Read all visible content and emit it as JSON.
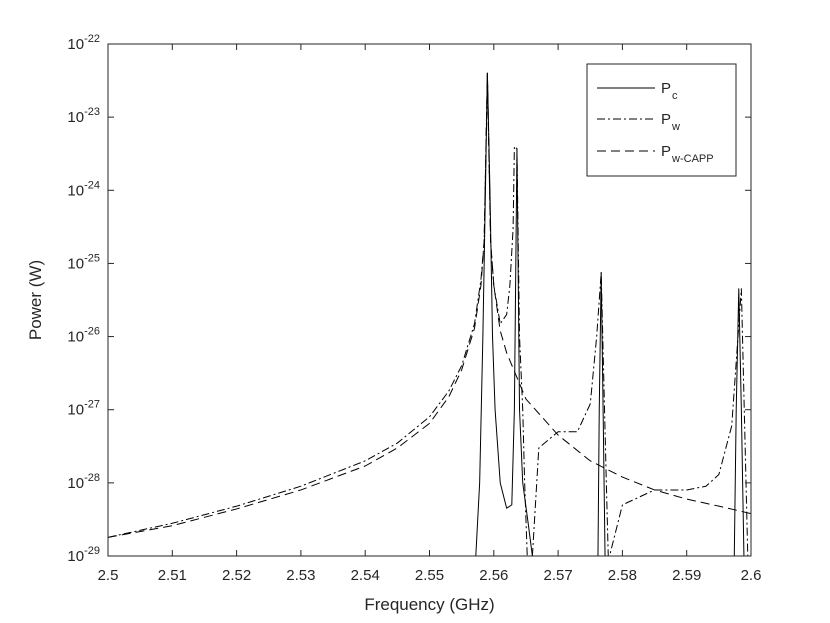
{
  "chart_data": {
    "type": "line",
    "title": "",
    "xlabel": "Frequency (GHz)",
    "ylabel": "Power (W)",
    "xlim": [
      2.5,
      2.6
    ],
    "ylim": [
      1e-29,
      1e-22
    ],
    "yscale": "log",
    "grid": false,
    "legend_position": "top-right",
    "x_ticks": [
      "2.5",
      "2.51",
      "2.52",
      "2.53",
      "2.54",
      "2.55",
      "2.56",
      "2.57",
      "2.58",
      "2.59",
      "2.6"
    ],
    "y_ticks": [
      {
        "base": "10",
        "exp": "-22"
      },
      {
        "base": "10",
        "exp": "-23"
      },
      {
        "base": "10",
        "exp": "-24"
      },
      {
        "base": "10",
        "exp": "-25"
      },
      {
        "base": "10",
        "exp": "-26"
      },
      {
        "base": "10",
        "exp": "-27"
      },
      {
        "base": "10",
        "exp": "-28"
      },
      {
        "base": "10",
        "exp": "-29"
      }
    ],
    "legend": [
      {
        "main": "P",
        "sub": "c"
      },
      {
        "main": "P",
        "sub": "w"
      },
      {
        "main": "P",
        "sub": "w-CAPP"
      }
    ],
    "series": [
      {
        "key": "Pc",
        "style": "solid",
        "x": [
          2.5572,
          2.5578,
          2.5583,
          2.5587,
          2.559,
          2.5594,
          2.5598,
          2.5602,
          2.561,
          2.562,
          2.5628,
          2.5632,
          2.5636,
          2.564,
          2.5645,
          2.5653,
          2.566,
          2.5665,
          2.5665,
          2.5762,
          2.5764,
          2.5767,
          2.577,
          2.5773,
          2.5775,
          2.5775,
          2.5974,
          2.5977,
          2.5981,
          2.5985,
          2.5989,
          2.5989
        ],
        "y": [
          1e-29,
          1e-28,
          1e-26,
          1e-24,
          4e-23,
          1e-24,
          1e-26,
          1e-27,
          1e-28,
          4.5e-29,
          5e-29,
          1e-27,
          3.7e-24,
          1e-27,
          1e-28,
          3e-29,
          1e-29,
          1e-29,
          null,
          1e-29,
          1e-27,
          7.5e-26,
          1e-27,
          1e-29,
          1e-29,
          null,
          1e-29,
          1e-27,
          4.5e-26,
          1e-27,
          1e-29,
          1e-29
        ]
      },
      {
        "key": "Pw",
        "style": "dashdot",
        "x": [
          2.5,
          2.51,
          2.52,
          2.53,
          2.54,
          2.545,
          2.55,
          2.553,
          2.555,
          2.557,
          2.558,
          2.5585,
          2.559,
          2.5595,
          2.56,
          2.561,
          2.562,
          2.5625,
          2.563,
          2.5632,
          2.5636,
          2.564,
          2.5645,
          2.5648,
          2.5652,
          2.5655,
          2.566,
          2.567,
          2.57,
          2.573,
          2.575,
          2.576,
          2.5767,
          2.5775,
          2.5778,
          2.578,
          2.58,
          2.585,
          2.59,
          2.593,
          2.595,
          2.597,
          2.5985,
          2.5995,
          2.6
        ],
        "y": [
          1.8e-29,
          2.8e-29,
          4.8e-29,
          9e-29,
          2e-28,
          3.5e-28,
          8e-28,
          1.8e-27,
          4e-27,
          1.5e-26,
          6e-26,
          2e-25,
          4e-23,
          2e-25,
          5e-26,
          1.5e-26,
          2e-26,
          5e-26,
          3e-25,
          4e-24,
          3.7e-24,
          1e-26,
          1e-27,
          1e-28,
          1e-29,
          null,
          1e-29,
          3e-28,
          5e-28,
          5e-28,
          1.2e-27,
          1e-26,
          7.5e-26,
          1e-28,
          1e-29,
          1e-29,
          5e-29,
          8e-29,
          8e-29,
          9e-29,
          1.3e-28,
          6e-28,
          4.5e-26,
          1e-29,
          1e-29
        ]
      },
      {
        "key": "Pw-CAPP",
        "style": "dashed",
        "x": [
          2.5,
          2.51,
          2.52,
          2.53,
          2.54,
          2.545,
          2.55,
          2.553,
          2.555,
          2.557,
          2.558,
          2.5585,
          2.559,
          2.5595,
          2.56,
          2.561,
          2.562,
          2.565,
          2.57,
          2.575,
          2.58,
          2.585,
          2.59,
          2.595,
          2.6
        ],
        "y": [
          1.8e-29,
          2.6e-29,
          4.4e-29,
          8e-29,
          1.7e-28,
          3e-28,
          6.5e-28,
          1.5e-27,
          3.5e-27,
          1.3e-26,
          5e-26,
          2e-25,
          4e-23,
          2e-25,
          5e-26,
          1.2e-26,
          6e-27,
          1.4e-27,
          4.5e-28,
          2e-28,
          1.2e-28,
          8e-29,
          6e-29,
          4.8e-29,
          3.8e-29
        ]
      }
    ]
  }
}
